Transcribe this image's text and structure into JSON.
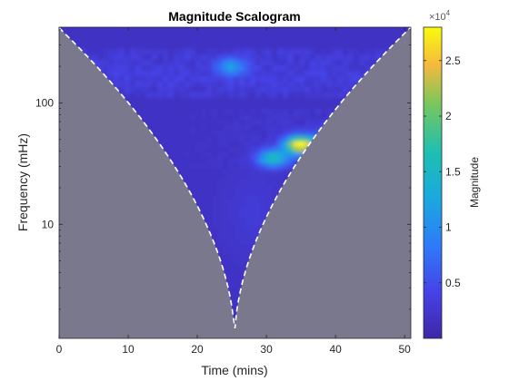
{
  "chart_data": {
    "type": "heatmap",
    "title": "Magnitude Scalogram",
    "xlabel": "Time (mins)",
    "ylabel": "Frequency (mHz)",
    "xlim": [
      0,
      50.9
    ],
    "ylim": [
      1.15,
      420
    ],
    "yscale": "log",
    "x_ticks": [
      0,
      10,
      20,
      30,
      40,
      50
    ],
    "x_tick_labels": [
      "0",
      "10",
      "20",
      "30",
      "40",
      "50"
    ],
    "y_ticks": [
      10,
      100
    ],
    "y_tick_labels": [
      "10",
      "100"
    ],
    "colorbar": {
      "label": "Magnitude",
      "exponent_label": "×10",
      "exponent": "4",
      "range": [
        0,
        2.8
      ],
      "ticks": [
        0.5,
        1,
        1.5,
        2,
        2.5
      ],
      "tick_labels": [
        "0.5",
        "1",
        "1.5",
        "2",
        "2.5"
      ]
    },
    "cone_of_influence": {
      "style": "white dashed",
      "t_min": 25.4,
      "min_freq": 1.15,
      "max_freq": 420,
      "shaded_color": "#7a788c"
    },
    "features": [
      {
        "time": 35,
        "freq": 45,
        "magnitude": 2.8
      },
      {
        "time": 31,
        "freq": 35,
        "magnitude": 1.4
      },
      {
        "time": 40,
        "freq": 55,
        "magnitude": 1.0
      },
      {
        "time": 44,
        "freq": 58,
        "magnitude": 0.9
      },
      {
        "time": 25,
        "freq": 200,
        "magnitude": 0.9
      }
    ],
    "colormap": "parula"
  }
}
